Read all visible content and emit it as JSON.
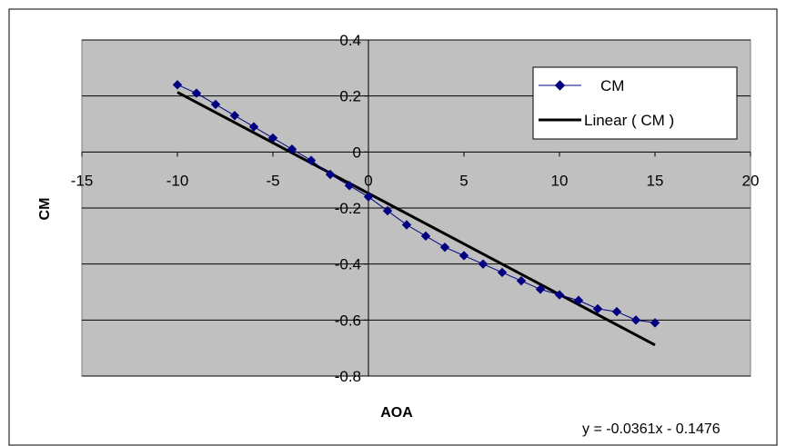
{
  "chart_data": {
    "type": "scatter",
    "title": "",
    "xlabel": "AOA",
    "ylabel": "CM",
    "xlim": [
      -15,
      20
    ],
    "ylim": [
      -0.8,
      0.4
    ],
    "xticks": [
      -15,
      -10,
      -5,
      0,
      5,
      10,
      15,
      20
    ],
    "yticks": [
      0.4,
      0.2,
      0,
      -0.2,
      -0.4,
      -0.6,
      -0.8
    ],
    "xtick_labels": [
      "-15",
      "-10",
      "-5",
      "0",
      "5",
      "10",
      "15",
      "20"
    ],
    "ytick_labels": [
      "0.4",
      "0.2",
      "0",
      "-0.2",
      "-0.4",
      "-0.6",
      "-0.8"
    ],
    "grid": "horizontal",
    "plot_background": "#c0c0c0",
    "legend_position": "top-right",
    "series": [
      {
        "name": "CM",
        "style": "line-with-diamond-markers",
        "color": "#000080",
        "x": [
          -10,
          -9,
          -8,
          -7,
          -6,
          -5,
          -4,
          -3,
          -2,
          -1,
          0,
          1,
          2,
          3,
          4,
          5,
          6,
          7,
          8,
          9,
          10,
          11,
          12,
          13,
          14,
          15
        ],
        "y": [
          0.24,
          0.21,
          0.17,
          0.13,
          0.09,
          0.05,
          0.01,
          -0.03,
          -0.08,
          -0.12,
          -0.16,
          -0.21,
          -0.26,
          -0.3,
          -0.34,
          -0.37,
          -0.4,
          -0.43,
          -0.46,
          -0.49,
          -0.51,
          -0.53,
          -0.56,
          -0.57,
          -0.6,
          -0.61
        ]
      },
      {
        "name": "Linear ( CM )",
        "style": "trendline",
        "color": "#000000",
        "x": [
          -10,
          15
        ],
        "y": [
          0.2134,
          -0.6891
        ]
      }
    ],
    "annotations": [
      {
        "text": "y = -0.0361x - 0.1476"
      }
    ]
  }
}
